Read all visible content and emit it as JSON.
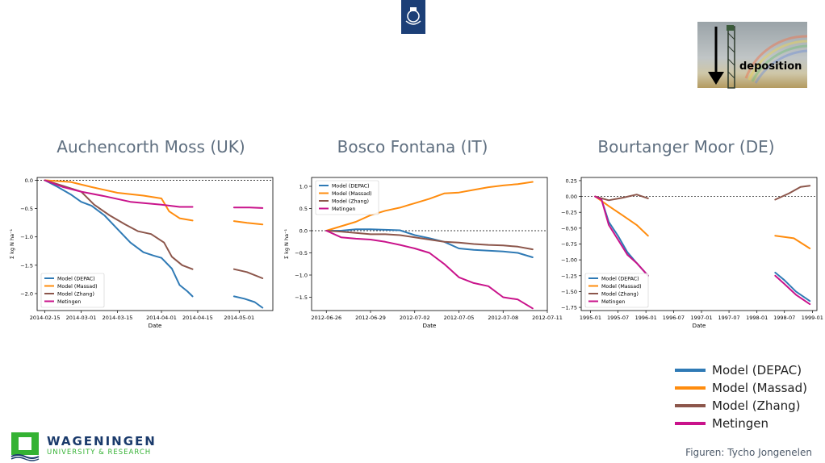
{
  "header": {
    "logo_icon": "rijksoverheid-crest-icon"
  },
  "inset_image": {
    "label": "deposition",
    "icon": "arrow-down-icon"
  },
  "colors": {
    "depac": "#2f7ab5",
    "massad": "#ff8c0e",
    "zhang": "#8c564b",
    "metingen": "#c9138b"
  },
  "big_legend": [
    {
      "label": "Model (DEPAC)",
      "color": "#2f7ab5"
    },
    {
      "label": "Model (Massad)",
      "color": "#ff8c0e"
    },
    {
      "label": "Model (Zhang)",
      "color": "#8c564b"
    },
    {
      "label": "Metingen",
      "color": "#c9138b"
    }
  ],
  "footer": {
    "org_name": "WAGENINGEN",
    "org_sub": "UNIVERSITY & RESEARCH",
    "credit": "Figuren: Tycho Jongenelen"
  },
  "chart_data": [
    {
      "type": "line",
      "title": "Auchencorth Moss (UK)",
      "xlabel": "Date",
      "ylabel": "Σ kg N ha⁻¹",
      "ylim": [
        -2.3,
        0.05
      ],
      "yticks": [
        0.0,
        -0.5,
        -1.0,
        -1.5,
        -2.0
      ],
      "ytick_labels": [
        "0.0",
        "−0.5",
        "−1.0",
        "−1.5",
        "−2.0"
      ],
      "xlim": [
        "2014-02-12",
        "2014-05-14"
      ],
      "xticks": [
        "2014-02-15",
        "2014-03-01",
        "2014-03-15",
        "2014-04-01",
        "2014-04-15",
        "2014-05-01"
      ],
      "xtick_labels": [
        "2014-02-15",
        "2014-03-01",
        "2014-03-15",
        "2014-04-01",
        "2014-04-15",
        "2014-05-01"
      ],
      "zero_line": true,
      "legend_position": "lower-left",
      "series": [
        {
          "name": "Model (DEPAC)",
          "color_key": "depac",
          "segments": [
            [
              [
                "2014-02-15",
                0
              ],
              [
                "2014-02-20",
                -0.12
              ],
              [
                "2014-02-25",
                -0.25
              ],
              [
                "2014-03-01",
                -0.38
              ],
              [
                "2014-03-05",
                -0.45
              ],
              [
                "2014-03-10",
                -0.62
              ],
              [
                "2014-03-15",
                -0.86
              ],
              [
                "2014-03-20",
                -1.1
              ],
              [
                "2014-03-25",
                -1.27
              ],
              [
                "2014-03-29",
                -1.33
              ],
              [
                "2014-04-01",
                -1.37
              ],
              [
                "2014-04-05",
                -1.56
              ],
              [
                "2014-04-08",
                -1.85
              ],
              [
                "2014-04-11",
                -1.96
              ],
              [
                "2014-04-13",
                -2.05
              ]
            ],
            [
              [
                "2014-04-29",
                -2.05
              ],
              [
                "2014-05-03",
                -2.09
              ],
              [
                "2014-05-07",
                -2.15
              ],
              [
                "2014-05-10",
                -2.25
              ]
            ]
          ]
        },
        {
          "name": "Model (Massad)",
          "color_key": "massad",
          "segments": [
            [
              [
                "2014-02-15",
                0
              ],
              [
                "2014-02-25",
                -0.03
              ],
              [
                "2014-03-05",
                -0.12
              ],
              [
                "2014-03-15",
                -0.22
              ],
              [
                "2014-03-25",
                -0.27
              ],
              [
                "2014-04-01",
                -0.32
              ],
              [
                "2014-04-04",
                -0.55
              ],
              [
                "2014-04-08",
                -0.67
              ],
              [
                "2014-04-13",
                -0.71
              ]
            ],
            [
              [
                "2014-04-29",
                -0.72
              ],
              [
                "2014-05-04",
                -0.75
              ],
              [
                "2014-05-10",
                -0.78
              ]
            ]
          ]
        },
        {
          "name": "Model (Zhang)",
          "color_key": "zhang",
          "segments": [
            [
              [
                "2014-02-15",
                0
              ],
              [
                "2014-02-22",
                -0.1
              ],
              [
                "2014-03-01",
                -0.2
              ],
              [
                "2014-03-06",
                -0.43
              ],
              [
                "2014-03-12",
                -0.62
              ],
              [
                "2014-03-18",
                -0.78
              ],
              [
                "2014-03-23",
                -0.9
              ],
              [
                "2014-03-28",
                -0.95
              ],
              [
                "2014-04-02",
                -1.1
              ],
              [
                "2014-04-05",
                -1.35
              ],
              [
                "2014-04-09",
                -1.5
              ],
              [
                "2014-04-13",
                -1.57
              ]
            ],
            [
              [
                "2014-04-29",
                -1.57
              ],
              [
                "2014-05-04",
                -1.62
              ],
              [
                "2014-05-10",
                -1.73
              ]
            ]
          ]
        },
        {
          "name": "Metingen",
          "color_key": "metingen",
          "segments": [
            [
              [
                "2014-02-15",
                0
              ],
              [
                "2014-02-22",
                -0.12
              ],
              [
                "2014-03-01",
                -0.2
              ],
              [
                "2014-03-10",
                -0.28
              ],
              [
                "2014-03-20",
                -0.38
              ],
              [
                "2014-04-01",
                -0.43
              ],
              [
                "2014-04-08",
                -0.47
              ],
              [
                "2014-04-13",
                -0.47
              ]
            ],
            [
              [
                "2014-04-29",
                -0.48
              ],
              [
                "2014-05-05",
                -0.48
              ],
              [
                "2014-05-10",
                -0.49
              ]
            ]
          ]
        }
      ]
    },
    {
      "type": "line",
      "title": "Bosco Fontana (IT)",
      "xlabel": "Date",
      "ylabel": "Σ kg N ha⁻¹",
      "ylim": [
        -1.8,
        1.2
      ],
      "yticks": [
        1.0,
        0.5,
        0.0,
        -0.5,
        -1.0,
        -1.5
      ],
      "ytick_labels": [
        "1.0",
        "0.5",
        "0.0",
        "−0.5",
        "−1.0",
        "−1.5"
      ],
      "xlim": [
        "2012-06-25",
        "2012-07-11"
      ],
      "xticks": [
        "2012-06-26",
        "2012-06-29",
        "2012-07-02",
        "2012-07-05",
        "2012-07-08",
        "2012-07-11"
      ],
      "xtick_labels": [
        "2012-06-26",
        "2012-06-29",
        "2012-07-02",
        "2012-07-05",
        "2012-07-08",
        "2012-07-11"
      ],
      "zero_line": true,
      "legend_position": "upper-left",
      "series": [
        {
          "name": "Model (DEPAC)",
          "color_key": "depac",
          "segments": [
            [
              [
                "2012-06-26",
                0
              ],
              [
                "2012-06-27",
                0
              ],
              [
                "2012-06-28",
                0.03
              ],
              [
                "2012-06-29",
                0.03
              ],
              [
                "2012-06-30",
                0.02
              ],
              [
                "2012-07-01",
                0.01
              ],
              [
                "2012-07-02",
                -0.1
              ],
              [
                "2012-07-03",
                -0.17
              ],
              [
                "2012-07-04",
                -0.25
              ],
              [
                "2012-07-05",
                -0.4
              ],
              [
                "2012-07-06",
                -0.43
              ],
              [
                "2012-07-07",
                -0.45
              ],
              [
                "2012-07-08",
                -0.47
              ],
              [
                "2012-07-09",
                -0.5
              ],
              [
                "2012-07-10",
                -0.6
              ]
            ]
          ]
        },
        {
          "name": "Model (Massad)",
          "color_key": "massad",
          "segments": [
            [
              [
                "2012-06-26",
                0
              ],
              [
                "2012-06-27",
                0.1
              ],
              [
                "2012-06-28",
                0.2
              ],
              [
                "2012-06-29",
                0.35
              ],
              [
                "2012-06-30",
                0.45
              ],
              [
                "2012-07-01",
                0.52
              ],
              [
                "2012-07-02",
                0.62
              ],
              [
                "2012-07-03",
                0.72
              ],
              [
                "2012-07-04",
                0.84
              ],
              [
                "2012-07-05",
                0.86
              ],
              [
                "2012-07-06",
                0.92
              ],
              [
                "2012-07-07",
                0.98
              ],
              [
                "2012-07-08",
                1.02
              ],
              [
                "2012-07-09",
                1.05
              ],
              [
                "2012-07-10",
                1.1
              ]
            ]
          ]
        },
        {
          "name": "Model (Zhang)",
          "color_key": "zhang",
          "segments": [
            [
              [
                "2012-06-26",
                0
              ],
              [
                "2012-06-27",
                -0.02
              ],
              [
                "2012-06-28",
                -0.05
              ],
              [
                "2012-06-29",
                -0.08
              ],
              [
                "2012-06-30",
                -0.08
              ],
              [
                "2012-07-01",
                -0.1
              ],
              [
                "2012-07-02",
                -0.15
              ],
              [
                "2012-07-03",
                -0.2
              ],
              [
                "2012-07-04",
                -0.25
              ],
              [
                "2012-07-05",
                -0.27
              ],
              [
                "2012-07-06",
                -0.3
              ],
              [
                "2012-07-07",
                -0.32
              ],
              [
                "2012-07-08",
                -0.33
              ],
              [
                "2012-07-09",
                -0.36
              ],
              [
                "2012-07-10",
                -0.42
              ]
            ]
          ]
        },
        {
          "name": "Metingen",
          "color_key": "metingen",
          "segments": [
            [
              [
                "2012-06-26",
                0
              ],
              [
                "2012-06-27",
                -0.15
              ],
              [
                "2012-06-28",
                -0.18
              ],
              [
                "2012-06-29",
                -0.2
              ],
              [
                "2012-06-30",
                -0.25
              ],
              [
                "2012-07-01",
                -0.32
              ],
              [
                "2012-07-02",
                -0.4
              ],
              [
                "2012-07-03",
                -0.5
              ],
              [
                "2012-07-04",
                -0.75
              ],
              [
                "2012-07-05",
                -1.05
              ],
              [
                "2012-07-06",
                -1.18
              ],
              [
                "2012-07-07",
                -1.25
              ],
              [
                "2012-07-08",
                -1.5
              ],
              [
                "2012-07-09",
                -1.55
              ],
              [
                "2012-07-10",
                -1.75
              ]
            ]
          ]
        }
      ]
    },
    {
      "type": "line",
      "title": "Bourtanger Moor (DE)",
      "xlabel": "Date",
      "ylabel": "",
      "ylim": [
        -1.8,
        0.3
      ],
      "yticks": [
        0.25,
        0.0,
        -0.25,
        -0.5,
        -0.75,
        -1.0,
        -1.25,
        -1.5,
        -1.75
      ],
      "ytick_labels": [
        "0.25",
        "0.00",
        "−0.25",
        "−0.50",
        "−0.75",
        "−1.00",
        "−1.25",
        "−1.50",
        "−1.75"
      ],
      "xlim": [
        "1994-11-01",
        "1999-01-31"
      ],
      "xticks": [
        "1995-01-01",
        "1995-07-01",
        "1996-01-01",
        "1996-07-01",
        "1997-01-01",
        "1997-07-01",
        "1998-01-01",
        "1998-07-01",
        "1999-01-01"
      ],
      "xtick_labels": [
        "1995-01",
        "1995-07",
        "1996-01",
        "1996-07",
        "1997-01",
        "1997-07",
        "1998-01",
        "1998-07",
        "1999-01"
      ],
      "zero_line": true,
      "legend_position": "lower-left",
      "series": [
        {
          "name": "Model (DEPAC)",
          "color_key": "depac",
          "segments": [
            [
              [
                "1995-02-01",
                0
              ],
              [
                "1995-03-15",
                -0.05
              ],
              [
                "1995-05-01",
                -0.4
              ],
              [
                "1995-07-01",
                -0.62
              ],
              [
                "1995-09-01",
                -0.88
              ],
              [
                "1995-11-01",
                -1.05
              ],
              [
                "1996-01-15",
                -1.25
              ]
            ],
            [
              [
                "1998-05-01",
                -1.2
              ],
              [
                "1998-07-01",
                -1.32
              ],
              [
                "1998-09-15",
                -1.5
              ],
              [
                "1998-12-15",
                -1.65
              ]
            ]
          ]
        },
        {
          "name": "Model (Massad)",
          "color_key": "massad",
          "segments": [
            [
              [
                "1995-02-01",
                0
              ],
              [
                "1995-05-01",
                -0.15
              ],
              [
                "1995-08-01",
                -0.3
              ],
              [
                "1995-11-01",
                -0.45
              ],
              [
                "1996-01-15",
                -0.62
              ]
            ],
            [
              [
                "1998-05-01",
                -0.62
              ],
              [
                "1998-09-01",
                -0.66
              ],
              [
                "1998-12-15",
                -0.82
              ]
            ]
          ]
        },
        {
          "name": "Model (Zhang)",
          "color_key": "zhang",
          "segments": [
            [
              [
                "1995-02-01",
                0
              ],
              [
                "1995-05-01",
                -0.06
              ],
              [
                "1995-08-01",
                -0.02
              ],
              [
                "1995-11-01",
                0.03
              ],
              [
                "1996-01-15",
                -0.03
              ]
            ],
            [
              [
                "1998-05-01",
                -0.05
              ],
              [
                "1998-08-01",
                0.05
              ],
              [
                "1998-10-15",
                0.15
              ],
              [
                "1998-12-15",
                0.17
              ]
            ]
          ]
        },
        {
          "name": "Metingen",
          "color_key": "metingen",
          "segments": [
            [
              [
                "1995-02-01",
                0
              ],
              [
                "1995-03-15",
                -0.05
              ],
              [
                "1995-05-01",
                -0.45
              ],
              [
                "1995-07-01",
                -0.68
              ],
              [
                "1995-09-01",
                -0.92
              ],
              [
                "1995-11-01",
                -1.05
              ],
              [
                "1996-01-15",
                -1.25
              ]
            ],
            [
              [
                "1998-05-01",
                -1.25
              ],
              [
                "1998-07-01",
                -1.38
              ],
              [
                "1998-09-15",
                -1.55
              ],
              [
                "1998-12-15",
                -1.7
              ]
            ]
          ]
        }
      ]
    }
  ]
}
